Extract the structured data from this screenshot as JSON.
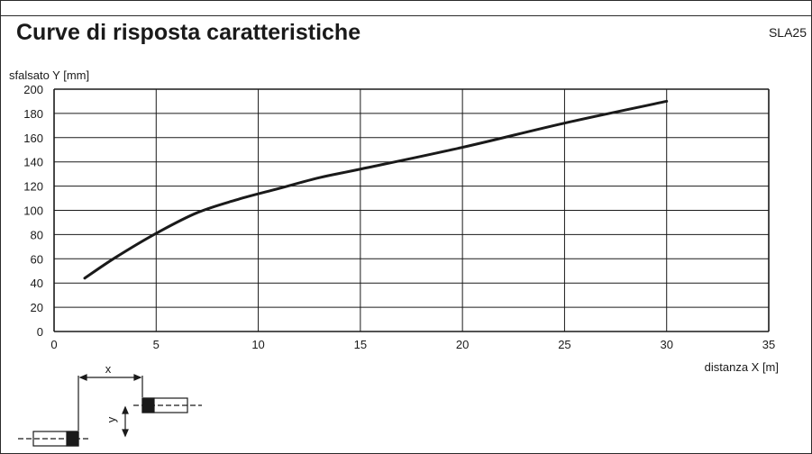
{
  "code": "SLA25",
  "chart_data": {
    "type": "line",
    "title": "Curve di risposta caratteristiche",
    "xlabel": "distanza X [m]",
    "ylabel": "sfalsato Y [mm]",
    "xlim": [
      0,
      35
    ],
    "ylim": [
      0,
      200
    ],
    "xticks": [
      0,
      5,
      10,
      15,
      20,
      25,
      30,
      35
    ],
    "yticks": [
      0,
      20,
      40,
      60,
      80,
      100,
      120,
      140,
      160,
      180,
      200
    ],
    "grid": true,
    "series": [
      {
        "x": [
          1.5,
          3,
          5,
          7,
          9,
          11,
          13,
          15,
          20,
          25,
          30
        ],
        "values": [
          44,
          61,
          81,
          98,
          109,
          118,
          127,
          134,
          152,
          172,
          190
        ]
      }
    ]
  },
  "diagram": {
    "x_label": "x",
    "y_label": "y"
  }
}
